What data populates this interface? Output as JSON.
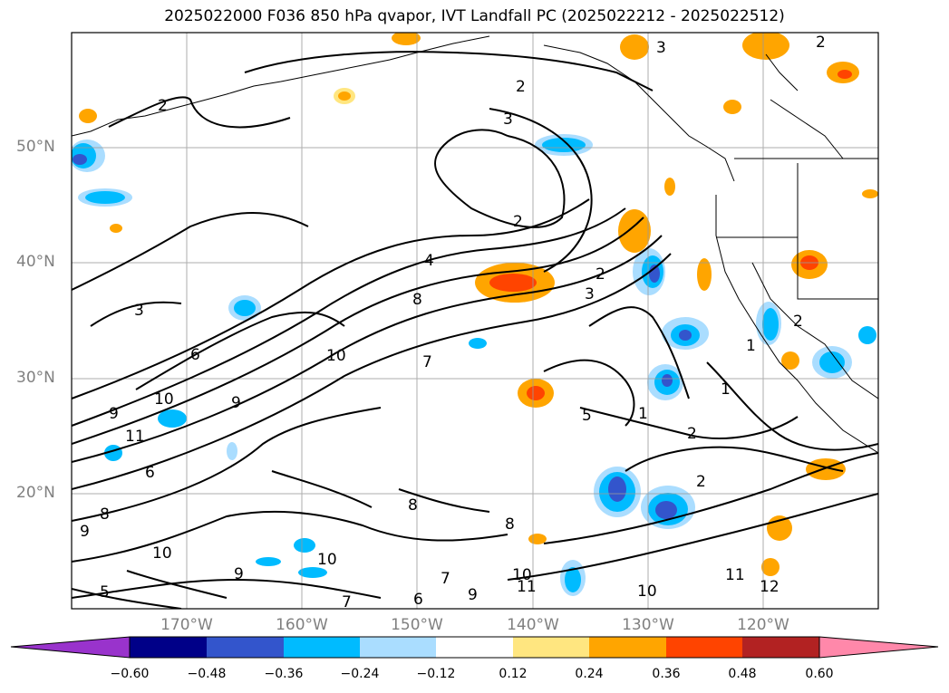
{
  "title": "2025022000 F036 850 hPa qvapor, IVT Landfall PC (2025022212 - 2025022512)",
  "lat_labels": [
    "50°N",
    "40°N",
    "30°N",
    "20°N"
  ],
  "lon_labels": [
    "170°W",
    "160°W",
    "150°W",
    "140°W",
    "130°W",
    "120°W"
  ],
  "colorbar": {
    "ticks": [
      "−0.60",
      "−0.48",
      "−0.36",
      "−0.24",
      "−0.12",
      "0.12",
      "0.24",
      "0.36",
      "0.48",
      "0.60"
    ],
    "colors": [
      "#9933cc",
      "#000088",
      "#3355cc",
      "#00bbff",
      "#aaddff",
      "#ffffff",
      "#ffe680",
      "#ffa500",
      "#ff4400",
      "#b22222",
      "#ff88aa"
    ]
  },
  "contour_labels": [
    "2",
    "3",
    "2",
    "2",
    "3",
    "4",
    "8",
    "6",
    "10",
    "10",
    "9",
    "11",
    "9",
    "7",
    "6",
    "8",
    "10",
    "10",
    "9",
    "8",
    "7",
    "6",
    "5",
    "7",
    "9",
    "10",
    "11",
    "12",
    "10",
    "11",
    "2",
    "2",
    "1",
    "1",
    "2",
    "3",
    "2",
    "2",
    "3",
    "9",
    "8",
    "1",
    "5"
  ]
}
